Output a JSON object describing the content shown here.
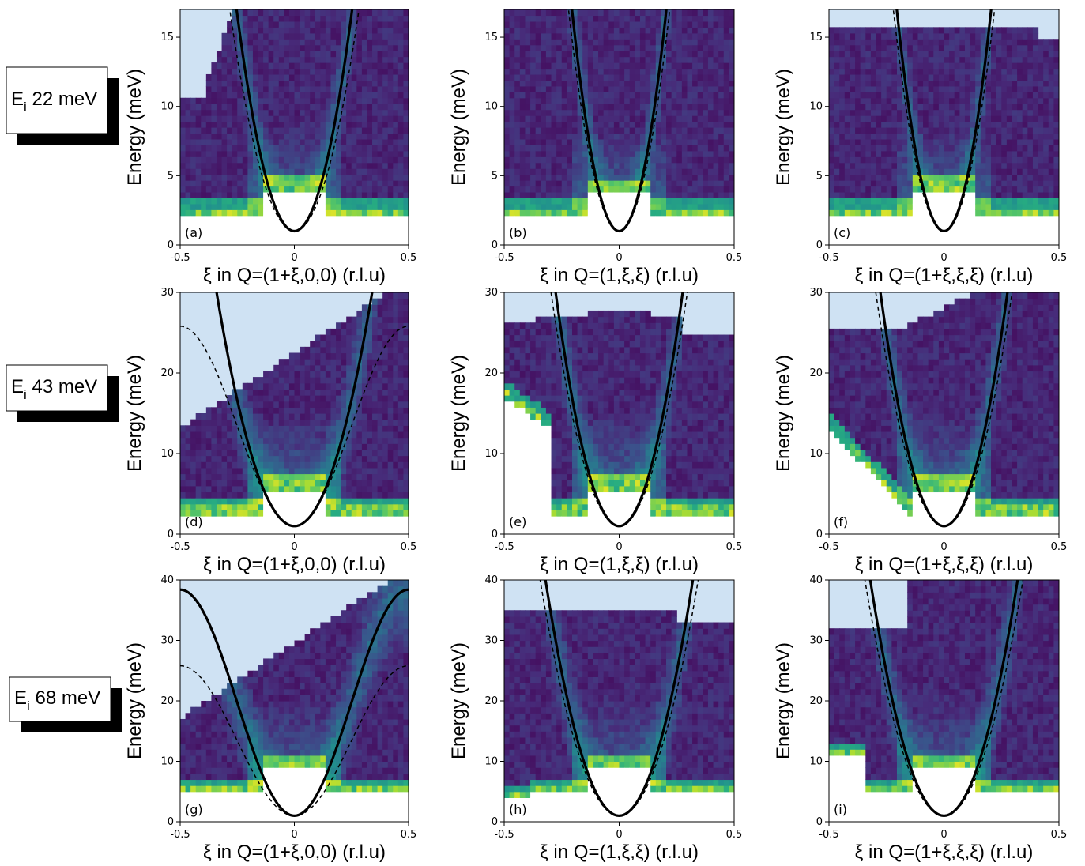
{
  "figure": {
    "row_labels": [
      {
        "main": "E",
        "sub": "i",
        "rest": " 22 meV"
      },
      {
        "main": "E",
        "sub": "i",
        "rest": " 43 meV"
      },
      {
        "main": "E",
        "sub": "i",
        "rest": " 68 meV"
      }
    ],
    "colors": {
      "accessible": "#cfe2f3",
      "map_low": "#440154",
      "map_mid": "#21918c",
      "map_high": "#fde725",
      "curve": "#000000"
    }
  },
  "chart_data": [
    {
      "type": "heatmap",
      "panel": "(a)",
      "ylabel": "Energy (meV)",
      "xlabel": "ξ in Q=(1+ξ,0,0) (r.l.u)",
      "xlim": [
        -0.5,
        0.5
      ],
      "ylim": [
        0,
        17
      ],
      "xticks": [
        "-0.5",
        "0",
        "0.5"
      ],
      "yticks": [
        "0",
        "5",
        "10",
        "15"
      ],
      "solid_curve": {
        "type": "parabola",
        "E0": 1,
        "D": 250
      },
      "dashed_curve": {
        "type": "parabola",
        "E0": 1,
        "D": 200
      }
    },
    {
      "type": "heatmap",
      "panel": "(b)",
      "ylabel": "Energy (meV)",
      "xlabel": "ξ in Q=(1,ξ,ξ) (r.l.u)",
      "xlim": [
        -0.5,
        0.5
      ],
      "ylim": [
        0,
        17
      ],
      "xticks": [
        "-0.5",
        "0",
        "0.5"
      ],
      "yticks": [
        "0",
        "5",
        "10",
        "15"
      ],
      "solid_curve": {
        "type": "parabola",
        "E0": 1,
        "D": 380
      },
      "dashed_curve": {
        "type": "parabola",
        "E0": 1,
        "D": 330
      }
    },
    {
      "type": "heatmap",
      "panel": "(c)",
      "ylabel": "Energy (meV)",
      "xlabel": "ξ in Q=(1+ξ,ξ,ξ) (r.l.u)",
      "xlim": [
        -0.5,
        0.5
      ],
      "ylim": [
        0,
        17
      ],
      "xticks": [
        "-0.5",
        "0",
        "0.5"
      ],
      "yticks": [
        "0",
        "5",
        "10",
        "15"
      ],
      "solid_curve": {
        "type": "parabola",
        "E0": 1,
        "D": 380
      },
      "dashed_curve": {
        "type": "parabola",
        "E0": 1,
        "D": 330
      }
    },
    {
      "type": "heatmap",
      "panel": "(d)",
      "ylabel": "Energy (meV)",
      "xlabel": "ξ in Q=(1+ξ,0,0) (r.l.u)",
      "xlim": [
        -0.5,
        0.5
      ],
      "ylim": [
        0,
        30
      ],
      "xticks": [
        "-0.5",
        "0",
        "0.5"
      ],
      "yticks": [
        "0",
        "10",
        "20",
        "30"
      ],
      "solid_curve": {
        "type": "parabola",
        "E0": 1,
        "D": 250
      },
      "dashed_curve": {
        "type": "cosine",
        "E0": 1,
        "A": 12.4
      }
    },
    {
      "type": "heatmap",
      "panel": "(e)",
      "ylabel": "Energy (meV)",
      "xlabel": "ξ in Q=(1,ξ,ξ) (r.l.u)",
      "xlim": [
        -0.5,
        0.5
      ],
      "ylim": [
        0,
        30
      ],
      "xticks": [
        "-0.5",
        "0",
        "0.5"
      ],
      "yticks": [
        "0",
        "10",
        "20",
        "30"
      ],
      "solid_curve": {
        "type": "parabola",
        "E0": 1,
        "D": 380
      },
      "dashed_curve": {
        "type": "parabola",
        "E0": 1,
        "D": 330
      }
    },
    {
      "type": "heatmap",
      "panel": "(f)",
      "ylabel": "Energy (meV)",
      "xlabel": "ξ in Q=(1+ξ,ξ,ξ) (r.l.u)",
      "xlim": [
        -0.5,
        0.5
      ],
      "ylim": [
        0,
        30
      ],
      "xticks": [
        "-0.5",
        "0",
        "0.5"
      ],
      "yticks": [
        "0",
        "10",
        "20",
        "30"
      ],
      "solid_curve": {
        "type": "parabola",
        "E0": 1,
        "D": 380
      },
      "dashed_curve": {
        "type": "parabola",
        "E0": 1,
        "D": 330
      }
    },
    {
      "type": "heatmap",
      "panel": "(g)",
      "ylabel": "Energy (meV)",
      "xlabel": "ξ in Q=(1+ξ,0,0) (r.l.u)",
      "xlim": [
        -0.5,
        0.5
      ],
      "ylim": [
        0,
        40
      ],
      "xticks": [
        "-0.5",
        "0",
        "0.5"
      ],
      "yticks": [
        "0",
        "10",
        "20",
        "30",
        "40"
      ],
      "solid_curve": {
        "type": "cosine",
        "E0": 1,
        "A": 18.7
      },
      "dashed_curve": {
        "type": "cosine",
        "E0": 1,
        "A": 12.4
      }
    },
    {
      "type": "heatmap",
      "panel": "(h)",
      "ylabel": "Energy (meV)",
      "xlabel": "ξ in Q=(1,ξ,ξ) (r.l.u)",
      "xlim": [
        -0.5,
        0.5
      ],
      "ylim": [
        0,
        40
      ],
      "xticks": [
        "-0.5",
        "0",
        "0.5"
      ],
      "yticks": [
        "0",
        "10",
        "20",
        "30",
        "40"
      ],
      "solid_curve": {
        "type": "parabola",
        "E0": 1,
        "D": 380
      },
      "dashed_curve": {
        "type": "parabola",
        "E0": 1,
        "D": 330
      }
    },
    {
      "type": "heatmap",
      "panel": "(i)",
      "ylabel": "Energy (meV)",
      "xlabel": "ξ in Q=(1+ξ,ξ,ξ) (r.l.u)",
      "xlim": [
        -0.5,
        0.5
      ],
      "ylim": [
        0,
        40
      ],
      "xticks": [
        "-0.5",
        "0",
        "0.5"
      ],
      "yticks": [
        "0",
        "10",
        "20",
        "30",
        "40"
      ],
      "solid_curve": {
        "type": "parabola",
        "E0": 1,
        "D": 380
      },
      "dashed_curve": {
        "type": "parabola",
        "E0": 1,
        "D": 330
      }
    }
  ]
}
